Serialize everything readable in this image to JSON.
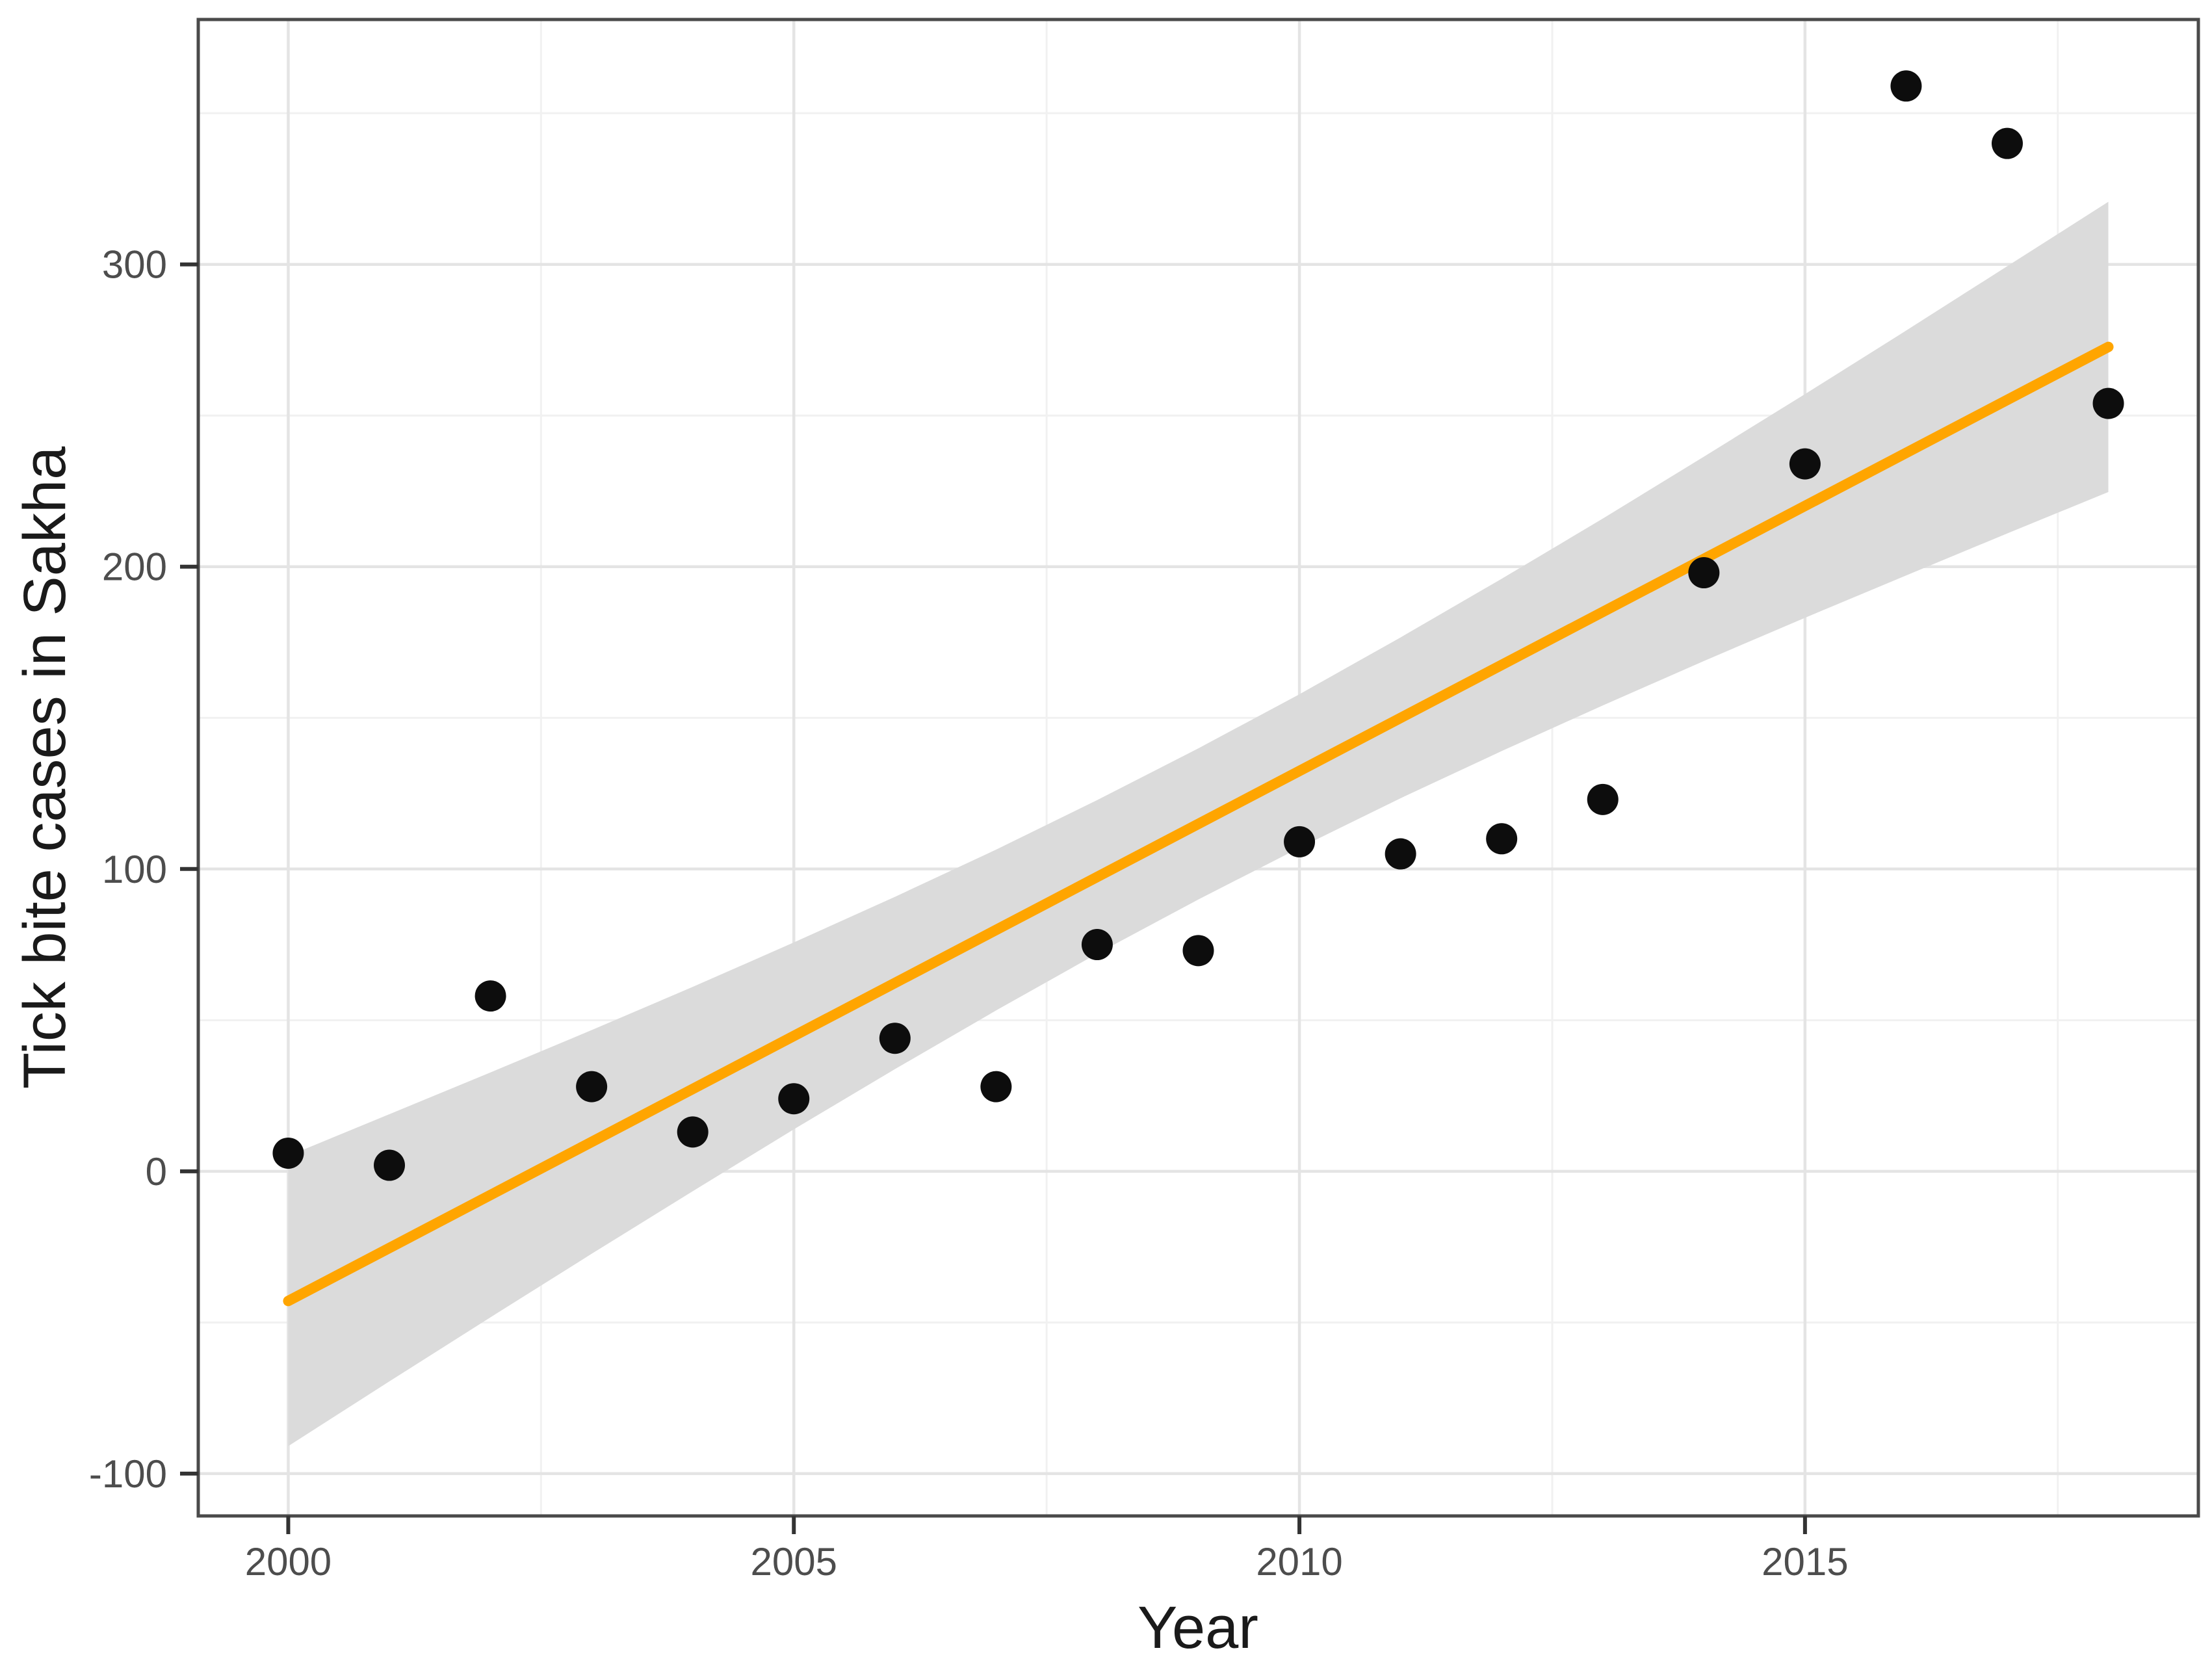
{
  "figure": {
    "kind": "ggplot-style scatter plot with linear regression and confidence band"
  },
  "chart_data": {
    "type": "scatter",
    "title": "",
    "xlabel": "Year",
    "ylabel": "Tick bite cases in Sakha",
    "x_ticks": [
      2000,
      2005,
      2010,
      2015
    ],
    "y_ticks": [
      300,
      200,
      100,
      0,
      -100
    ],
    "xlim": [
      1999.11,
      2018.89
    ],
    "ylim": [
      -114,
      381
    ],
    "grid": true,
    "legend": "none",
    "points": {
      "x": [
        2000,
        2001,
        2002,
        2003,
        2004,
        2005,
        2006,
        2007,
        2008,
        2009,
        2010,
        2011,
        2012,
        2013,
        2014,
        2015,
        2016,
        2017,
        2018
      ],
      "y": [
        6,
        2,
        58,
        28,
        13,
        24,
        44,
        28,
        75,
        73,
        109,
        105,
        110,
        123,
        198,
        234,
        359,
        340,
        254
      ]
    },
    "regression_line": {
      "x": [
        2000,
        2018
      ],
      "y": [
        -42.9,
        272.7
      ],
      "slope_per_year": 17.5,
      "value_at_2009": 114.9
    },
    "confidence_band": {
      "x": [
        2000,
        2001,
        2002,
        2003,
        2004,
        2005,
        2006,
        2007,
        2008,
        2009,
        2010,
        2011,
        2012,
        2013,
        2014,
        2015,
        2016,
        2017,
        2018
      ],
      "upper": [
        5.1,
        18.9,
        32.7,
        46.7,
        61.0,
        75.7,
        90.8,
        106.4,
        122.8,
        139.9,
        157.8,
        176.6,
        196.0,
        215.9,
        236.4,
        257.1,
        278.1,
        299.4,
        320.7
      ],
      "lower": [
        -90.9,
        -69.5,
        -48.3,
        -27.3,
        -6.6,
        13.9,
        33.8,
        53.2,
        72.0,
        89.9,
        107.0,
        123.4,
        139.0,
        154.1,
        168.8,
        183.1,
        197.1,
        211.0,
        224.7
      ]
    }
  },
  "colors": {
    "point": "#0d0d0d",
    "line": "#FFA500",
    "band": "#DBDBDB",
    "grid_major": "#E4E4E4",
    "grid_minor": "#F1F1F1",
    "panel_border": "#4a4a4a",
    "tick_mark": "#333333",
    "tick_label": "#4d4d4d",
    "axis_title": "#1a1a1a",
    "background": "#ffffff"
  }
}
